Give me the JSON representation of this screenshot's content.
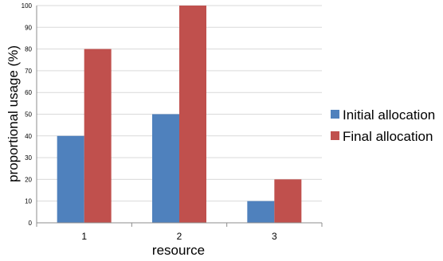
{
  "chart_data": {
    "type": "bar",
    "categories": [
      "1",
      "2",
      "3"
    ],
    "series": [
      {
        "name": "Initial allocation",
        "color": "#4F81BD",
        "values": [
          40,
          50,
          10
        ]
      },
      {
        "name": "Final allocation",
        "color": "#C0504D",
        "values": [
          80,
          100,
          20
        ]
      }
    ],
    "title": "",
    "xlabel": "resource",
    "ylabel": "proportional usage (%)",
    "ylim": [
      0,
      100
    ],
    "yticks": [
      0,
      10,
      20,
      30,
      40,
      50,
      60,
      70,
      80,
      90,
      100
    ],
    "grid": true,
    "legend_position": "right"
  }
}
